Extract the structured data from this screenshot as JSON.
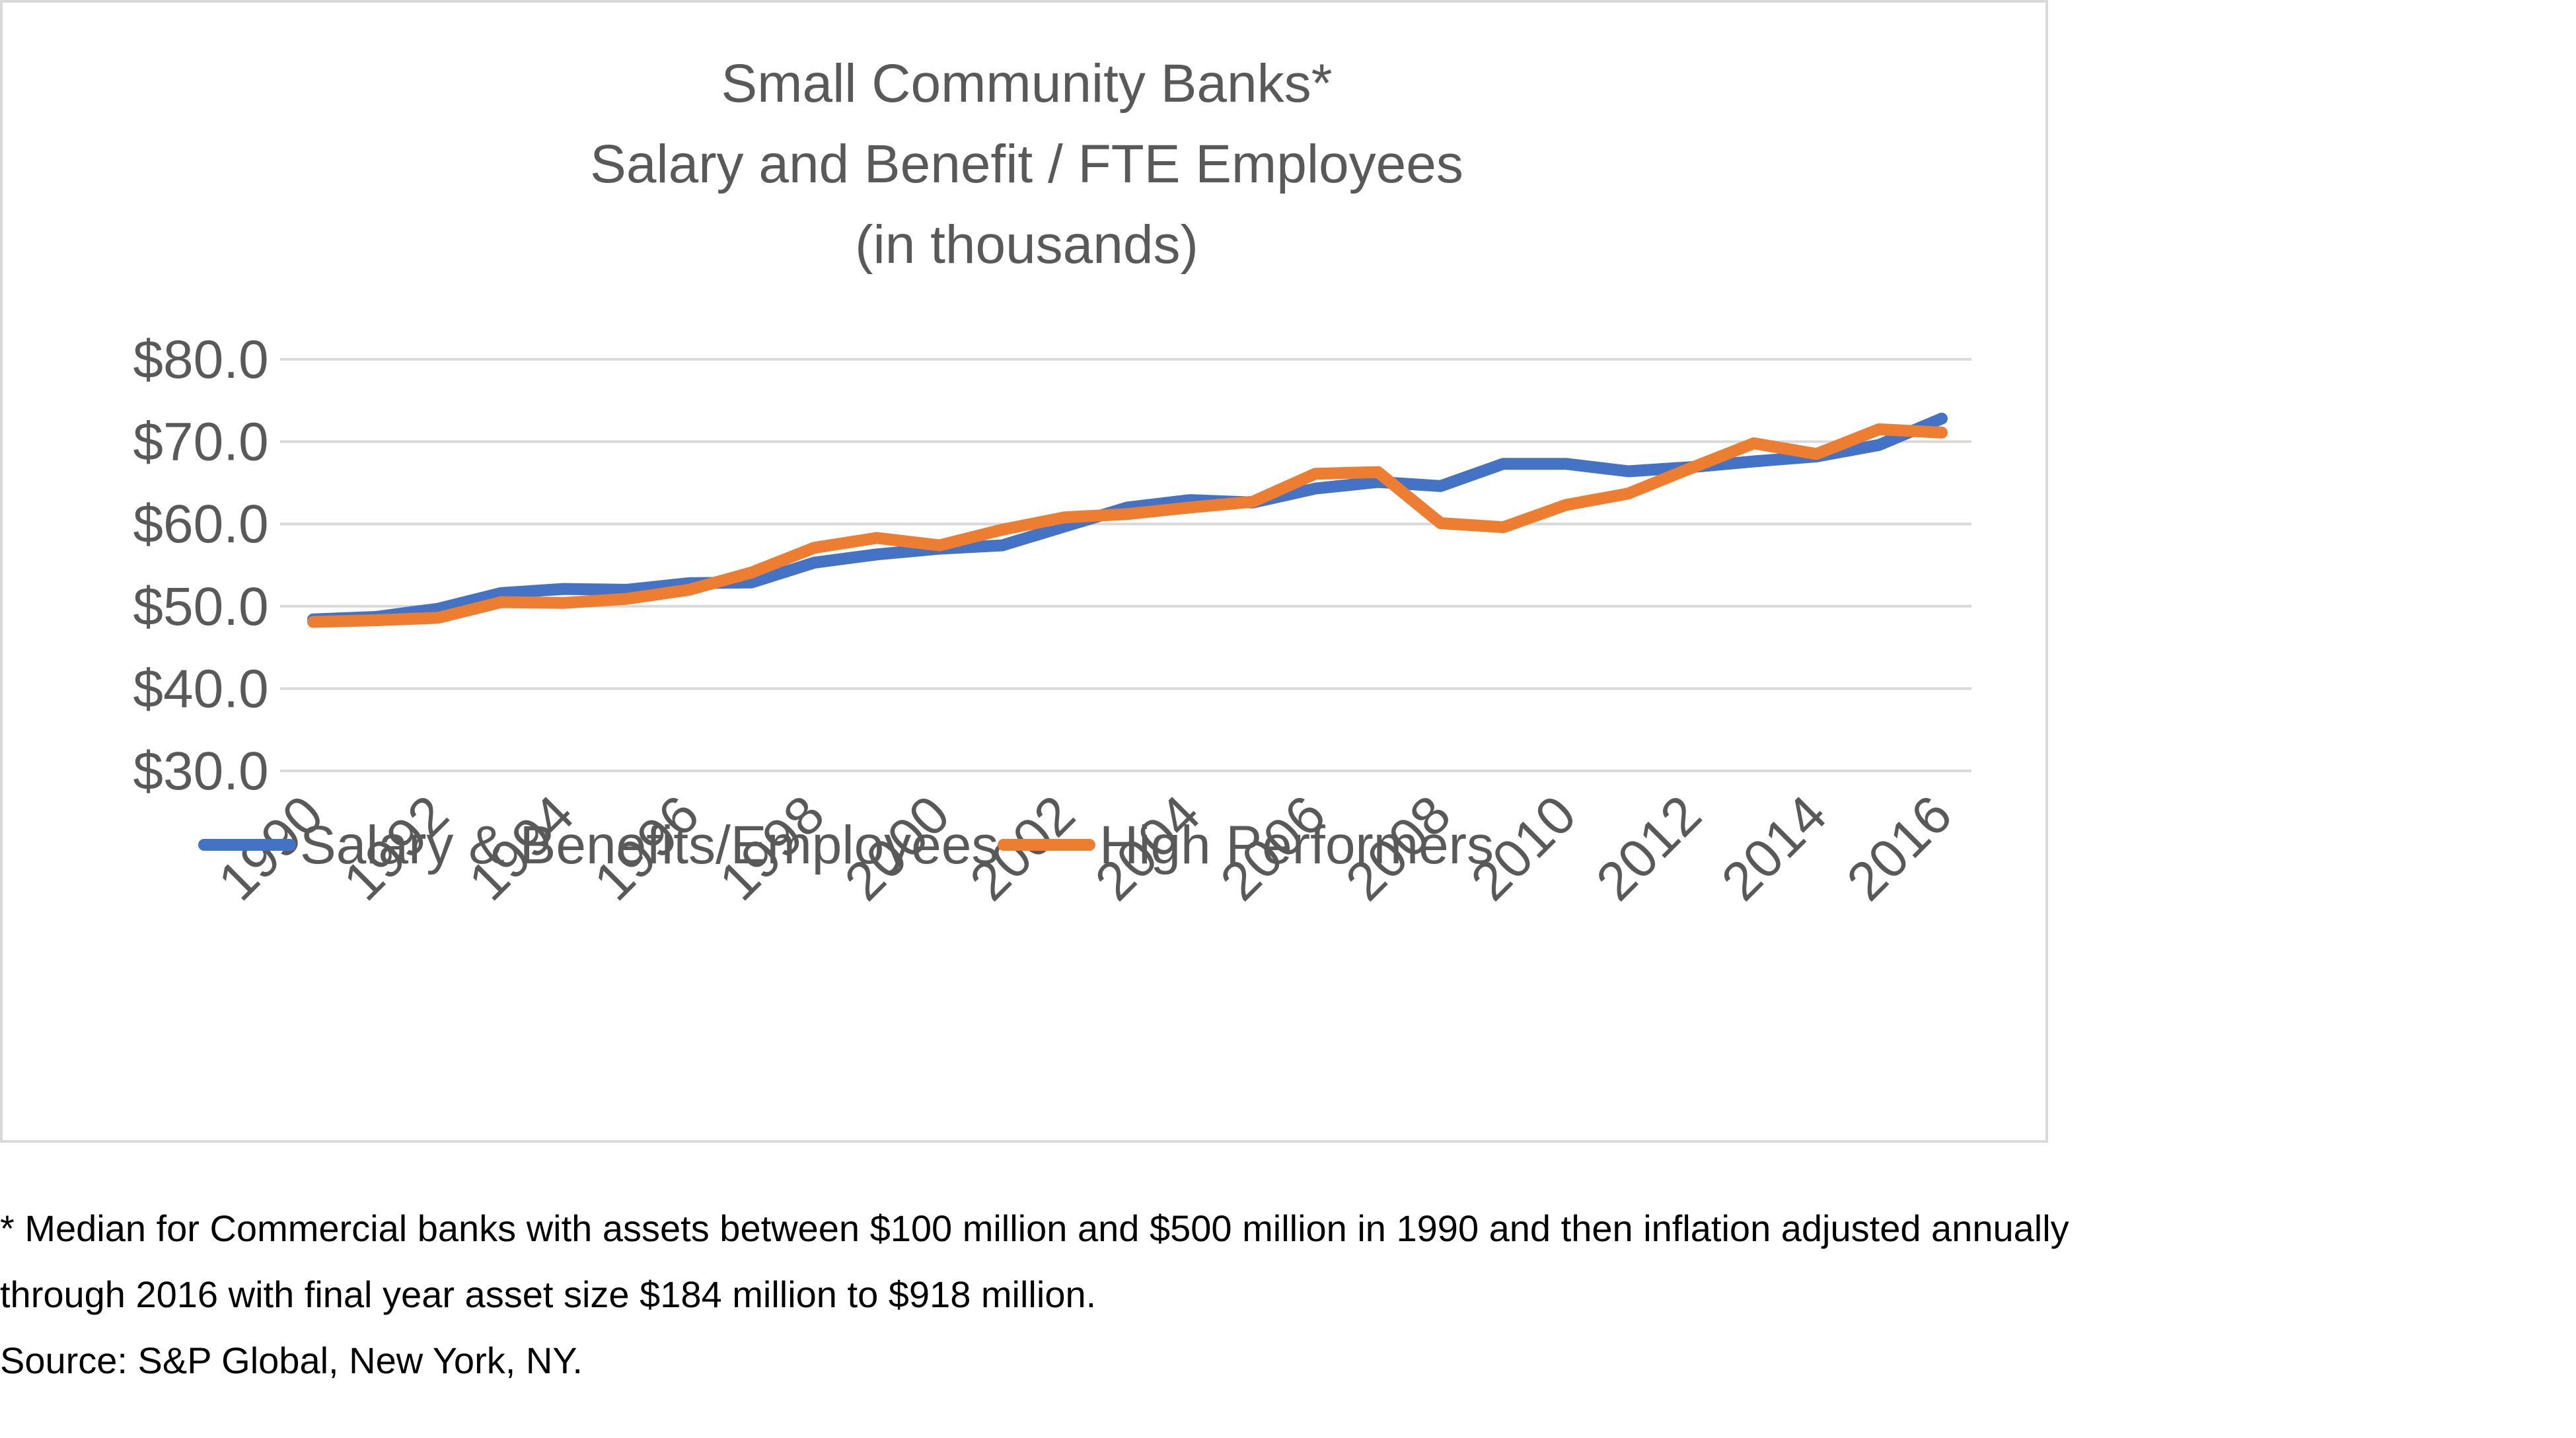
{
  "chart_data": {
    "type": "line",
    "title": [
      "Small Community Banks*",
      "Salary and Benefit / FTE Employees",
      "(in thousands)"
    ],
    "x": [
      1990,
      1991,
      1992,
      1993,
      1994,
      1995,
      1996,
      1997,
      1998,
      1999,
      2000,
      2001,
      2002,
      2003,
      2004,
      2005,
      2006,
      2007,
      2008,
      2009,
      2010,
      2011,
      2012,
      2013,
      2014,
      2015,
      2016
    ],
    "x_tick_labels": [
      "1990",
      "1992",
      "1994",
      "1996",
      "1998",
      "2000",
      "2002",
      "2004",
      "2006",
      "2008",
      "2010",
      "2012",
      "2014",
      "2016"
    ],
    "ylim": [
      30,
      80
    ],
    "y_ticks": [
      30,
      40,
      50,
      60,
      70,
      80
    ],
    "y_tick_labels": [
      "$30.0",
      "$40.0",
      "$50.0",
      "$60.0",
      "$70.0",
      "$80.0"
    ],
    "grid": true,
    "legend_position": "bottom",
    "series": [
      {
        "name": "Salary & Benefits/Employees",
        "color": "#4472C4",
        "values": [
          48.4,
          48.7,
          49.7,
          51.6,
          52.1,
          52.0,
          52.8,
          52.9,
          55.3,
          56.3,
          57.0,
          57.4,
          59.7,
          62.0,
          62.9,
          62.6,
          64.3,
          65.1,
          64.6,
          67.3,
          67.3,
          66.4,
          66.9,
          67.6,
          68.2,
          69.6,
          72.8
        ]
      },
      {
        "name": "High Performers",
        "color": "#ED7D31",
        "values": [
          48.1,
          48.3,
          48.6,
          50.5,
          50.4,
          50.9,
          52.0,
          54.1,
          57.1,
          58.3,
          57.4,
          59.3,
          60.8,
          61.2,
          62.0,
          62.7,
          66.1,
          66.3,
          60.1,
          59.6,
          62.3,
          63.7,
          66.8,
          69.8,
          68.5,
          71.5,
          71.1
        ]
      }
    ]
  },
  "footnote": {
    "line1": "* Median for Commercial banks with assets between $100 million and $500 million in 1990 and then inflation adjusted annually",
    "line2": "through 2016 with final year asset size $184 million to $918 million.",
    "line3": "Source: S&P Global, New York, NY."
  }
}
